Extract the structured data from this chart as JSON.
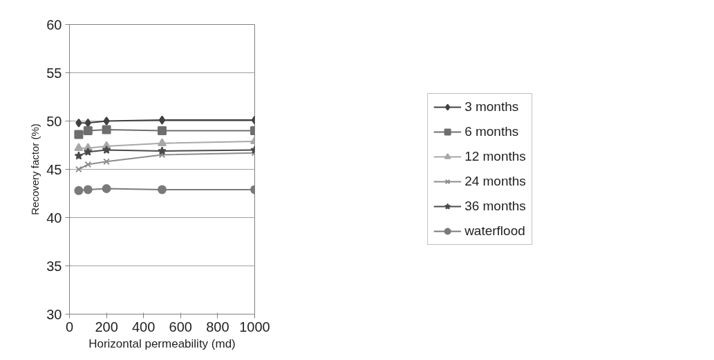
{
  "chart_data": {
    "type": "line",
    "xlabel": "Horizontal permeability (md)",
    "ylabel": "Recovery factor (%)",
    "x": [
      50,
      100,
      200,
      500,
      1000
    ],
    "xlim": [
      0,
      1000
    ],
    "xticks": [
      0,
      200,
      400,
      600,
      800,
      1000
    ],
    "ylim": [
      30,
      60
    ],
    "yticks": [
      30,
      35,
      40,
      45,
      50,
      55,
      60
    ],
    "grid": "y",
    "legend": "right",
    "line_style": "solid",
    "series": [
      {
        "name": "3 months",
        "color": "#404040",
        "marker": "diamond",
        "values": [
          49.8,
          49.8,
          50.0,
          50.1,
          50.1
        ]
      },
      {
        "name": "6 months",
        "color": "#6e6e6e",
        "marker": "square",
        "values": [
          48.6,
          49.0,
          49.1,
          49.0,
          49.0
        ]
      },
      {
        "name": "12 months",
        "color": "#a8a8a8",
        "marker": "triangle",
        "values": [
          47.2,
          47.2,
          47.4,
          47.7,
          47.9
        ]
      },
      {
        "name": "24 months",
        "color": "#8c8c8c",
        "marker": "cross",
        "values": [
          45.0,
          45.5,
          45.8,
          46.5,
          46.7
        ]
      },
      {
        "name": "36 months",
        "color": "#4a4a4a",
        "marker": "star",
        "values": [
          46.4,
          46.8,
          47.0,
          46.9,
          47.0
        ]
      },
      {
        "name": "waterflood",
        "color": "#7a7a7a",
        "marker": "circle",
        "values": [
          42.8,
          42.9,
          43.0,
          42.9,
          42.9
        ]
      }
    ]
  }
}
